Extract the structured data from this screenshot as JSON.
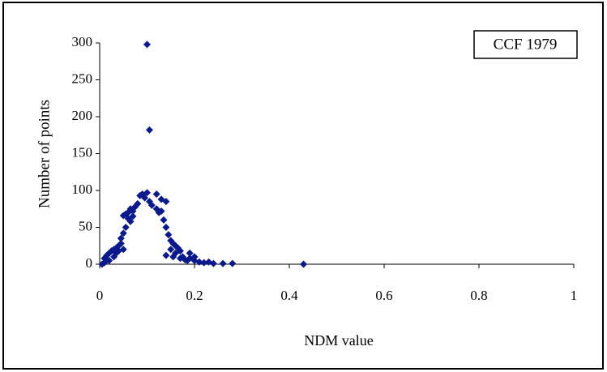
{
  "chart_data": {
    "type": "scatter",
    "xlabel": "NDM value",
    "ylabel": "Number of points",
    "annotation": "CCF 1979",
    "color": "#0a1a8c",
    "xlim": [
      0,
      1
    ],
    "xticks": [
      0,
      0.2,
      0.4,
      0.6,
      0.8,
      1
    ],
    "ylim": [
      0,
      300
    ],
    "yticks": [
      0,
      50,
      100,
      150,
      200,
      250,
      300
    ],
    "grid": false,
    "x": [
      0.1,
      0.105,
      0.09,
      0.1,
      0.085,
      0.095,
      0.12,
      0.13,
      0.14,
      0.105,
      0.11,
      0.08,
      0.075,
      0.07,
      0.065,
      0.06,
      0.055,
      0.05,
      0.06,
      0.065,
      0.07,
      0.12,
      0.125,
      0.13,
      0.135,
      0.14,
      0.145,
      0.15,
      0.155,
      0.16,
      0.165,
      0.17,
      0.15,
      0.14,
      0.155,
      0.16,
      0.17,
      0.175,
      0.18,
      0.185,
      0.19,
      0.2,
      0.21,
      0.22,
      0.23,
      0.24,
      0.26,
      0.28,
      0.43,
      0.01,
      0.015,
      0.02,
      0.025,
      0.03,
      0.035,
      0.04,
      0.045,
      0.05,
      0.055,
      0.045,
      0.03,
      0.02,
      0.01,
      0.005,
      0.04,
      0.035,
      0.05,
      0.19,
      0.2
    ],
    "values": [
      298,
      182,
      95,
      97,
      93,
      90,
      95,
      88,
      85,
      85,
      80,
      82,
      78,
      72,
      75,
      70,
      68,
      66,
      62,
      58,
      65,
      75,
      70,
      72,
      60,
      50,
      40,
      32,
      28,
      25,
      22,
      18,
      20,
      12,
      10,
      15,
      8,
      10,
      6,
      5,
      8,
      5,
      3,
      2,
      3,
      1,
      1,
      1,
      0,
      8,
      12,
      15,
      18,
      20,
      22,
      25,
      35,
      42,
      50,
      28,
      10,
      5,
      2,
      0,
      18,
      15,
      20,
      15,
      10
    ]
  }
}
